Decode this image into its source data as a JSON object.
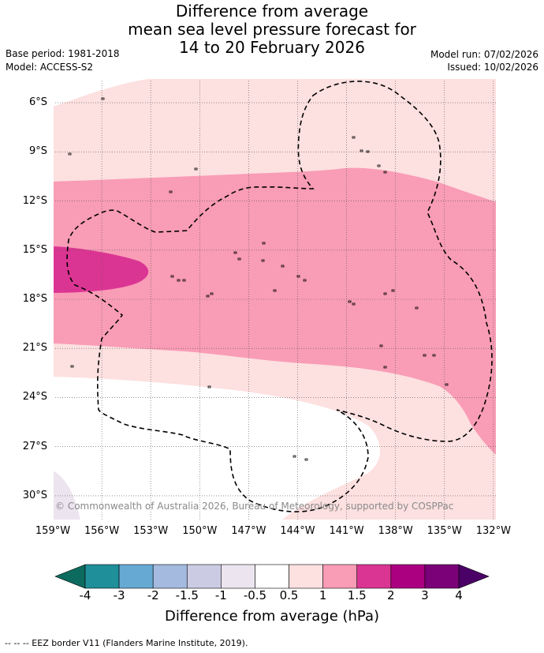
{
  "title": {
    "line1": "Difference from average",
    "line2": "mean sea level pressure forecast for",
    "line3": "14 to 20 February 2026"
  },
  "meta": {
    "base_period": "Base period: 1981-2018",
    "model": "Model: ACCESS-S2",
    "model_run": "Model run: 07/02/2026",
    "issued": "Issued: 10/02/2026"
  },
  "map": {
    "lon_range": [
      -159,
      -131.8
    ],
    "lat_range": [
      -31.5,
      -4.5
    ],
    "lat_labels": [
      "6°S",
      "9°S",
      "12°S",
      "15°S",
      "18°S",
      "21°S",
      "24°S",
      "27°S",
      "30°S"
    ],
    "lon_labels": [
      "159°W",
      "156°W",
      "153°W",
      "150°W",
      "147°W",
      "144°W",
      "141°W",
      "138°W",
      "135°W",
      "132°W"
    ],
    "copyright": "© Commonwealth of Australia 2026, Bureau of Meteorology, supported by COSPPac"
  },
  "colorbar": {
    "title": "Difference from average (hPa)",
    "labels": [
      "-4",
      "-3",
      "-2",
      "-1.5",
      "-1",
      "-0.5",
      "0.5",
      "1",
      "1.5",
      "2",
      "3",
      "4"
    ],
    "colors": {
      "below_min": "#0c6b5e",
      "bins": [
        "#1f8f9a",
        "#66a9d3",
        "#a4badf",
        "#cbcbe3",
        "#ece4ef",
        "#ffffff",
        "#fde0e0",
        "#f99cb6",
        "#db3593",
        "#ab0080",
        "#7a0177"
      ],
      "above_max": "#4a0066"
    }
  },
  "footer": "-- -- -- EEZ border V11 (Flanders Marine Institute, 2019)."
}
